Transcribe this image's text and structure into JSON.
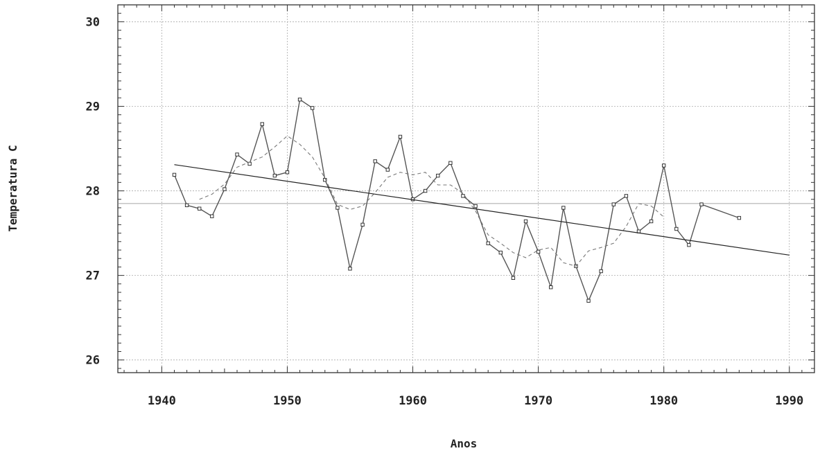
{
  "chart_data": {
    "type": "line",
    "xlabel": "Anos",
    "ylabel": "Temperatura C",
    "xlim": [
      1936.5,
      1992
    ],
    "ylim": [
      25.85,
      30.2
    ],
    "xticks": [
      1940,
      1950,
      1960,
      1970,
      1980,
      1990
    ],
    "yticks": [
      26,
      27,
      28,
      29,
      30
    ],
    "grid": true,
    "mean_reference": 27.85,
    "series": [
      {
        "style": "solid-markers",
        "points": [
          [
            1941,
            28.19
          ],
          [
            1942,
            27.83
          ],
          [
            1943,
            27.79
          ],
          [
            1944,
            27.7
          ],
          [
            1945,
            28.02
          ],
          [
            1946,
            28.43
          ],
          [
            1947,
            28.32
          ],
          [
            1948,
            28.79
          ],
          [
            1949,
            28.18
          ],
          [
            1950,
            28.22
          ],
          [
            1951,
            29.08
          ],
          [
            1952,
            28.98
          ],
          [
            1953,
            28.13
          ],
          [
            1954,
            27.8
          ],
          [
            1955,
            27.08
          ],
          [
            1956,
            27.6
          ],
          [
            1957,
            28.35
          ],
          [
            1958,
            28.25
          ],
          [
            1959,
            28.64
          ],
          [
            1960,
            27.9
          ],
          [
            1961,
            28.0
          ],
          [
            1962,
            28.18
          ],
          [
            1963,
            28.33
          ],
          [
            1964,
            27.94
          ],
          [
            1965,
            27.82
          ],
          [
            1966,
            27.38
          ],
          [
            1967,
            27.27
          ],
          [
            1968,
            26.97
          ],
          [
            1969,
            27.64
          ],
          [
            1970,
            27.28
          ],
          [
            1971,
            26.86
          ],
          [
            1972,
            27.8
          ],
          [
            1973,
            27.11
          ],
          [
            1974,
            26.7
          ],
          [
            1975,
            27.05
          ],
          [
            1976,
            27.84
          ],
          [
            1977,
            27.94
          ],
          [
            1978,
            27.52
          ],
          [
            1979,
            27.64
          ],
          [
            1980,
            28.3
          ],
          [
            1981,
            27.55
          ],
          [
            1982,
            27.36
          ],
          [
            1983,
            27.84
          ],
          [
            1986,
            27.68
          ]
        ]
      },
      {
        "style": "dashed-smooth",
        "points": [
          [
            1943,
            27.9
          ],
          [
            1944,
            27.96
          ],
          [
            1945,
            28.08
          ],
          [
            1946,
            28.28
          ],
          [
            1947,
            28.34
          ],
          [
            1948,
            28.4
          ],
          [
            1949,
            28.52
          ],
          [
            1950,
            28.65
          ],
          [
            1951,
            28.55
          ],
          [
            1952,
            28.4
          ],
          [
            1953,
            28.15
          ],
          [
            1954,
            27.84
          ],
          [
            1955,
            27.78
          ],
          [
            1956,
            27.82
          ],
          [
            1957,
            27.98
          ],
          [
            1958,
            28.16
          ],
          [
            1959,
            28.22
          ],
          [
            1960,
            28.19
          ],
          [
            1961,
            28.22
          ],
          [
            1962,
            28.07
          ],
          [
            1963,
            28.07
          ],
          [
            1964,
            27.97
          ],
          [
            1965,
            27.76
          ],
          [
            1966,
            27.48
          ],
          [
            1967,
            27.38
          ],
          [
            1968,
            27.27
          ],
          [
            1969,
            27.21
          ],
          [
            1970,
            27.3
          ],
          [
            1971,
            27.33
          ],
          [
            1972,
            27.15
          ],
          [
            1973,
            27.11
          ],
          [
            1974,
            27.29
          ],
          [
            1975,
            27.33
          ],
          [
            1976,
            27.38
          ],
          [
            1977,
            27.58
          ],
          [
            1978,
            27.85
          ],
          [
            1979,
            27.82
          ],
          [
            1980,
            27.69
          ]
        ]
      },
      {
        "style": "solid-trend",
        "points": [
          [
            1941,
            28.31
          ],
          [
            1990,
            27.24
          ]
        ]
      }
    ]
  }
}
